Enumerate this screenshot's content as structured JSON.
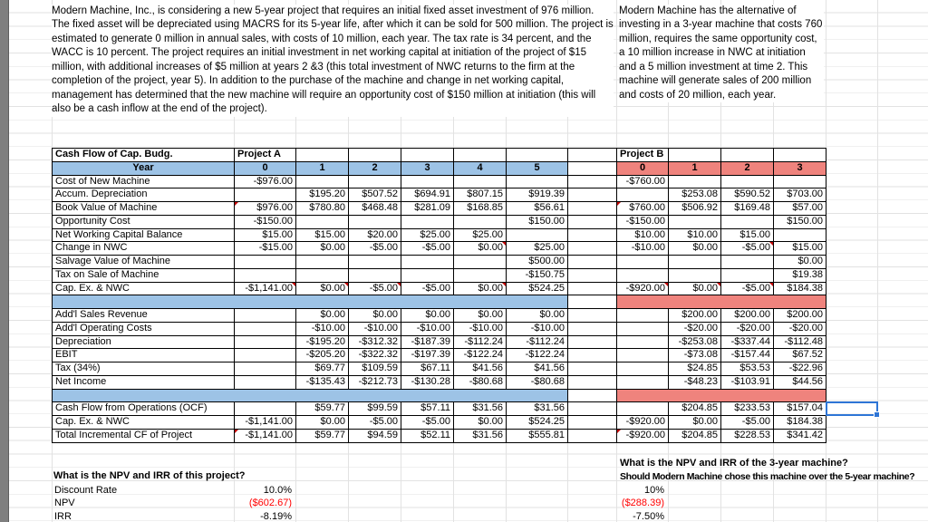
{
  "colors": {
    "band_blue": "#9DC3E6",
    "band_red": "#EF837D",
    "negative": "#FF0000",
    "grid": "#E2E2E2",
    "sidebar": "#7F7F7F",
    "selection": "#2E75D6"
  },
  "intro": {
    "project_a": "Modern Machine, Inc., is considering a new 5-year project that requires an initial fixed asset investment of 976 million. The fixed asset will be depreciated using MACRS for its 5-year life, after which it can be sold for 500 million.  The project is estimated to generate 0 million in annual sales, with costs of 10 million, each year. The tax rate is 34 percent, and the WACC is 10 percent. The project requires an initial investment in net working capital at initiation of the project of $15 million, with additional increases of $5 million at years 2 &3 (this total investment of NWC returns to the firm at the completion of the project, year 5).  In addition to the purchase of the machine and change in net working capital, management has determined that the new machine will require an opportunity cost of $150 million at initiation (this will also be a cash inflow at the end of the project).",
    "project_b": "Modern Machine has the alternative of investing in a 3-year machine that costs 760 million, requires the same opportunity cost, a 10 million increase in NWC at initiation and a 5 million investment at time 2.  This machine will generate sales of 200 million and costs of 20 million, each year."
  },
  "table": {
    "title_label": "Cash Flow of Cap. Budg.",
    "project_a_label": "Project A",
    "project_b_label": "Project B",
    "year_label": "Year",
    "years_a": [
      "0",
      "1",
      "2",
      "3",
      "4",
      "5"
    ],
    "years_b": [
      "0",
      "1",
      "2",
      "3"
    ],
    "rows": [
      {
        "label": "Cost of New Machine",
        "a": [
          "-$976.00",
          "",
          "",
          "",
          "",
          ""
        ],
        "b": [
          "-$760.00",
          "",
          "",
          ""
        ]
      },
      {
        "label": "Accum. Depreciation",
        "a": [
          "",
          "$195.20",
          "$507.52",
          "$694.91",
          "$807.15",
          "$919.39"
        ],
        "b": [
          "",
          "$253.08",
          "$590.52",
          "$703.00"
        ]
      },
      {
        "label": "Book Value of Machine",
        "a": [
          "$976.00",
          "$780.80",
          "$468.48",
          "$281.09",
          "$168.85",
          "$56.61"
        ],
        "b": [
          "$760.00",
          "$506.92",
          "$169.48",
          "$57.00"
        ],
        "fa": [
          [
            0,
            "l"
          ]
        ],
        "fb": [
          [
            0,
            "l"
          ]
        ]
      },
      {
        "label": "Opportunity Cost",
        "a": [
          "-$150.00",
          "",
          "",
          "",
          "",
          "$150.00"
        ],
        "b": [
          "-$150.00",
          "",
          "",
          "$150.00"
        ]
      },
      {
        "label": "Net Working Capital Balance",
        "a": [
          "$15.00",
          "$15.00",
          "$20.00",
          "$25.00",
          "$25.00",
          ""
        ],
        "b": [
          "$10.00",
          "$10.00",
          "$15.00",
          ""
        ]
      },
      {
        "label": "Change in NWC",
        "a": [
          "-$15.00",
          "$0.00",
          "-$5.00",
          "-$5.00",
          "$0.00",
          "$25.00"
        ],
        "b": [
          "-$10.00",
          "$0.00",
          "-$5.00",
          "$15.00"
        ],
        "fa": [
          [
            4,
            "r"
          ]
        ],
        "fb": [
          [
            2,
            "r"
          ]
        ]
      },
      {
        "label": "Salvage Value of Machine",
        "a": [
          "",
          "",
          "",
          "",
          "",
          "$500.00"
        ],
        "b": [
          "",
          "",
          "",
          "$0.00"
        ]
      },
      {
        "label": "Tax on Sale of Machine",
        "a": [
          "",
          "",
          "",
          "",
          "",
          "-$150.75"
        ],
        "b": [
          "",
          "",
          "",
          "$19.38"
        ]
      },
      {
        "label": "Cap. Ex. & NWC",
        "a": [
          "-$1,141.00",
          "$0.00",
          "-$5.00",
          "-$5.00",
          "$0.00",
          "$524.25"
        ],
        "b": [
          "-$920.00",
          "$0.00",
          "-$5.00",
          "$184.38"
        ],
        "fa": [
          [
            0,
            "r"
          ],
          [
            1,
            "r"
          ],
          [
            2,
            "r"
          ],
          [
            4,
            "r"
          ]
        ],
        "fb": [
          [
            0,
            "r"
          ],
          [
            1,
            "r"
          ],
          [
            2,
            "r"
          ]
        ]
      },
      {
        "band": true
      },
      {
        "label": "Add'l Sales Revenue",
        "a": [
          "",
          "$0.00",
          "$0.00",
          "$0.00",
          "$0.00",
          "$0.00"
        ],
        "b": [
          "",
          "$200.00",
          "$200.00",
          "$200.00"
        ]
      },
      {
        "label": "Add'l Operating Costs",
        "a": [
          "",
          "-$10.00",
          "-$10.00",
          "-$10.00",
          "-$10.00",
          "-$10.00"
        ],
        "b": [
          "",
          "-$20.00",
          "-$20.00",
          "-$20.00"
        ]
      },
      {
        "label": "Depreciation",
        "a": [
          "",
          "-$195.20",
          "-$312.32",
          "-$187.39",
          "-$112.24",
          "-$112.24"
        ],
        "b": [
          "",
          "-$253.08",
          "-$337.44",
          "-$112.48"
        ]
      },
      {
        "label": "EBIT",
        "a": [
          "",
          "-$205.20",
          "-$322.32",
          "-$197.39",
          "-$122.24",
          "-$122.24"
        ],
        "b": [
          "",
          "-$73.08",
          "-$157.44",
          "$67.52"
        ]
      },
      {
        "label": "Tax (34%)",
        "a": [
          "",
          "$69.77",
          "$109.59",
          "$67.11",
          "$41.56",
          "$41.56"
        ],
        "b": [
          "",
          "$24.85",
          "$53.53",
          "-$22.96"
        ]
      },
      {
        "label": "Net Income",
        "a": [
          "",
          "-$135.43",
          "-$212.73",
          "-$130.28",
          "-$80.68",
          "-$80.68"
        ],
        "b": [
          "",
          "-$48.23",
          "-$103.91",
          "$44.56"
        ]
      },
      {
        "band": true
      },
      {
        "label": "Cash Flow from Operations (OCF)",
        "a": [
          "",
          "$59.77",
          "$99.59",
          "$57.11",
          "$31.56",
          "$31.56"
        ],
        "b": [
          "",
          "$204.85",
          "$233.53",
          "$157.04"
        ]
      },
      {
        "label": "Cap. Ex. & NWC",
        "a": [
          "-$1,141.00",
          "$0.00",
          "-$5.00",
          "-$5.00",
          "$0.00",
          "$524.25"
        ],
        "b": [
          "-$920.00",
          "$0.00",
          "-$5.00",
          "$184.38"
        ]
      },
      {
        "label": "Total Incremental CF of Project",
        "a": [
          "-$1,141.00",
          "$59.77",
          "$94.59",
          "$52.11",
          "$31.56",
          "$555.81"
        ],
        "b": [
          "-$920.00",
          "$204.85",
          "$228.53",
          "$341.42"
        ],
        "fa": [
          [
            0,
            "l"
          ]
        ],
        "fb": [
          [
            0,
            "l"
          ]
        ]
      }
    ]
  },
  "bottom_left": {
    "question": "What is the NPV and IRR of this project?",
    "discount_label": "Discount Rate",
    "discount_value": "10.0%",
    "npv_label": "NPV",
    "npv_value": "($602.67)",
    "irr_label": "IRR",
    "irr_value": "-8.19%"
  },
  "bottom_right": {
    "question1": "What is the NPV and IRR of the 3-year machine?",
    "question2": "Should Modern Machine chose this machine over the 5-year machine?",
    "discount_value": "10%",
    "npv_value": "($288.39)",
    "irr_value": "-7.50%"
  }
}
